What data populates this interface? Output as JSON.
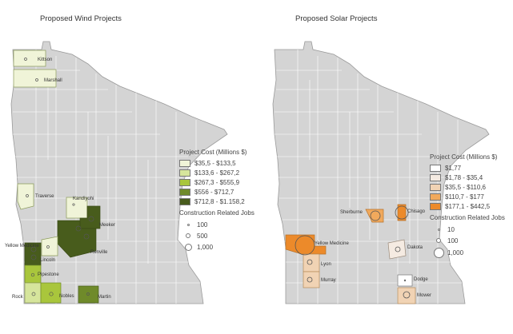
{
  "wind": {
    "title": "Proposed Wind Projects",
    "legend_title": "Project Cost (Millions $)",
    "cost_classes": [
      {
        "label": "$35,5 - $133,5",
        "color": "#f0f4d8"
      },
      {
        "label": "$133,6 - $267,2",
        "color": "#d6e59c"
      },
      {
        "label": "$267,3 - $555,9",
        "color": "#a9c63c"
      },
      {
        "label": "$556 - $712,7",
        "color": "#6f8a2a"
      },
      {
        "label": "$712,8 - $1.158,2",
        "color": "#485c1c"
      }
    ],
    "jobs_title": "Construction Related Jobs",
    "jobs_classes": [
      "100",
      "500",
      "1,000"
    ],
    "counties": {
      "kittson": "Kittson",
      "marshall": "Marshall",
      "traverse": "Traverse",
      "kandiyohi": "Kandiyohi",
      "meeker": "Meeker",
      "renville": "Renville",
      "yellow_medicine": "Yellow Medicine",
      "lincoln": "Lincoln",
      "pipestone": "Pipestone",
      "rock": "Rock",
      "nobles": "Nobles",
      "martin": "Martin"
    }
  },
  "solar": {
    "title": "Proposed Solar Projects",
    "legend_title": "Project Cost (Millions $)",
    "cost_classes": [
      {
        "label": "$1,77",
        "color": "#ffffff"
      },
      {
        "label": "$1,78 - $35,4",
        "color": "#f5ebe2"
      },
      {
        "label": "$35,5 - $110,6",
        "color": "#f1d3b4"
      },
      {
        "label": "$110,7 - $177",
        "color": "#f1a95c"
      },
      {
        "label": "$177,1 - $442,5",
        "color": "#ec8a2a"
      }
    ],
    "jobs_title": "Construction Related Jobs",
    "jobs_classes": [
      "10",
      "100",
      "1,000"
    ],
    "counties": {
      "sherburne": "Sherburne",
      "chisago": "Chisago",
      "yellow_medicine": "Yellow Medicine",
      "dakota": "Dakota",
      "lyon": "Lyon",
      "murray": "Murray",
      "dodge": "Dodge",
      "mower": "Mower"
    }
  },
  "colors": {
    "state_fill": "#d4d4d4",
    "county_lines": "#ffffff",
    "outline": "#9a9a9a"
  }
}
